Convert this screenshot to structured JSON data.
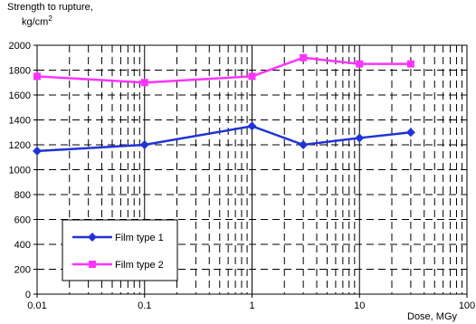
{
  "chart_data": {
    "type": "line",
    "ylabel": "Strength to rupture,",
    "ylabel_unit_base": "kg/cm",
    "ylabel_unit_sup": "2",
    "xlabel": "Dose, MGy",
    "x_scale": "log",
    "xlim": [
      0.01,
      100
    ],
    "ylim": [
      0,
      2000
    ],
    "x_ticks": [
      "0.01",
      "0.1",
      "1",
      "10",
      "100"
    ],
    "y_ticks": [
      "0",
      "200",
      "400",
      "600",
      "800",
      "1000",
      "1200",
      "1400",
      "1600",
      "1800",
      "2000"
    ],
    "grid": true,
    "legend_position": "bottom-left",
    "series": [
      {
        "name": "Film type 1",
        "color": "#1f33d6",
        "marker": "diamond",
        "x": [
          0.01,
          0.1,
          1,
          3,
          10,
          30
        ],
        "y": [
          1150,
          1200,
          1350,
          1200,
          1255,
          1300
        ]
      },
      {
        "name": "Film type 2",
        "color": "#ff33ff",
        "marker": "square",
        "x": [
          0.01,
          0.1,
          1,
          3,
          10,
          30
        ],
        "y": [
          1750,
          1700,
          1750,
          1900,
          1850,
          1850
        ]
      }
    ]
  }
}
